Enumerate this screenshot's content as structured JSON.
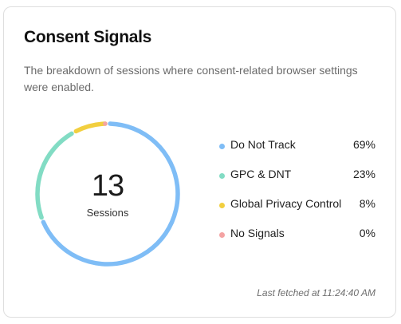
{
  "card": {
    "title": "Consent Signals",
    "subtitle": "The breakdown of sessions where consent-related browser settings were enabled.",
    "total_value": "13",
    "total_caption": "Sessions",
    "last_fetched": "Last fetched at 11:24:40 AM"
  },
  "chart_data": {
    "type": "pie",
    "categories": [
      "Do Not Track",
      "GPC & DNT",
      "Global Privacy Control",
      "No Signals"
    ],
    "values": [
      69,
      23,
      8,
      0
    ],
    "value_labels": [
      "69%",
      "23%",
      "8%",
      "0%"
    ],
    "colors": [
      "#7fbdf6",
      "#82dcc4",
      "#f2cf3f",
      "#f4a3a3"
    ]
  },
  "legend": [
    {
      "label": "Do Not Track",
      "value": "69%",
      "color": "#7fbdf6"
    },
    {
      "label": "GPC & DNT",
      "value": "23%",
      "color": "#82dcc4"
    },
    {
      "label": "Global Privacy Control",
      "value": "8%",
      "color": "#f2cf3f"
    },
    {
      "label": "No Signals",
      "value": "0%",
      "color": "#f4a3a3"
    }
  ]
}
